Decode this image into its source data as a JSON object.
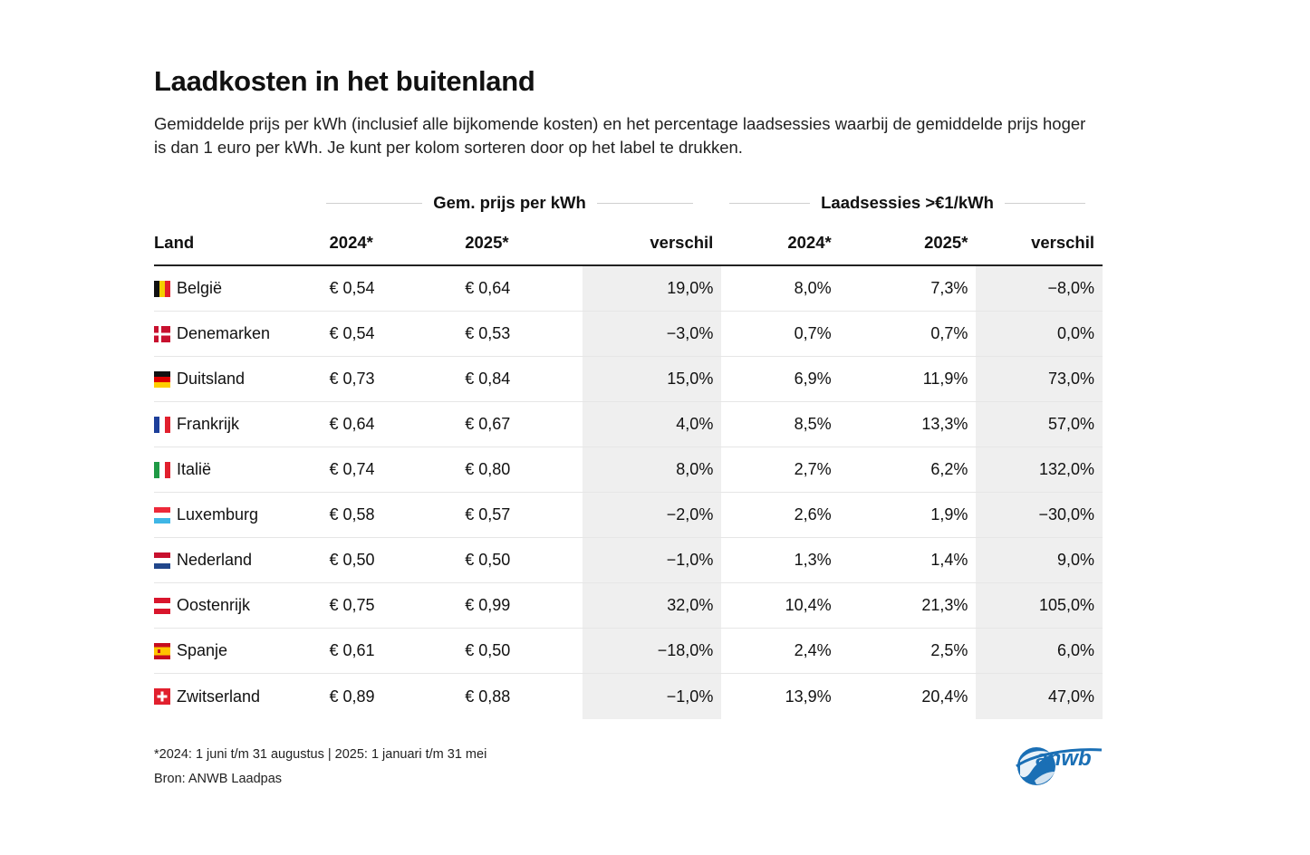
{
  "chart_data": {
    "type": "table",
    "title": "Laadkosten in het buitenland",
    "subtitle": "Gemiddelde prijs per kWh (inclusief alle bijkomende kosten) en het percentage laadsessies waarbij de gemiddelde prijs hoger is dan 1 euro per kWh. Je kunt per kolom sorteren door op het label te drukken.",
    "group_headers": [
      "Gem. prijs per kWh",
      "Laadsessies >€1/kWh"
    ],
    "columns": [
      "Land",
      "2024*",
      "2025*",
      "verschil",
      "2024*",
      "2025*",
      "verschil"
    ],
    "rows": [
      {
        "land": "België",
        "flag": "be",
        "prijs_2024": "€ 0,54",
        "prijs_2025": "€ 0,64",
        "prijs_verschil": "19,0%",
        "sessies_2024": "8,0%",
        "sessies_2025": "7,3%",
        "sessies_verschil": "−8,0%"
      },
      {
        "land": "Denemarken",
        "flag": "dk",
        "prijs_2024": "€ 0,54",
        "prijs_2025": "€ 0,53",
        "prijs_verschil": "−3,0%",
        "sessies_2024": "0,7%",
        "sessies_2025": "0,7%",
        "sessies_verschil": "0,0%"
      },
      {
        "land": "Duitsland",
        "flag": "de",
        "prijs_2024": "€ 0,73",
        "prijs_2025": "€ 0,84",
        "prijs_verschil": "15,0%",
        "sessies_2024": "6,9%",
        "sessies_2025": "11,9%",
        "sessies_verschil": "73,0%"
      },
      {
        "land": "Frankrijk",
        "flag": "fr",
        "prijs_2024": "€ 0,64",
        "prijs_2025": "€ 0,67",
        "prijs_verschil": "4,0%",
        "sessies_2024": "8,5%",
        "sessies_2025": "13,3%",
        "sessies_verschil": "57,0%"
      },
      {
        "land": "Italië",
        "flag": "it",
        "prijs_2024": "€ 0,74",
        "prijs_2025": "€ 0,80",
        "prijs_verschil": "8,0%",
        "sessies_2024": "2,7%",
        "sessies_2025": "6,2%",
        "sessies_verschil": "132,0%"
      },
      {
        "land": "Luxemburg",
        "flag": "lu",
        "prijs_2024": "€ 0,58",
        "prijs_2025": "€ 0,57",
        "prijs_verschil": "−2,0%",
        "sessies_2024": "2,6%",
        "sessies_2025": "1,9%",
        "sessies_verschil": "−30,0%"
      },
      {
        "land": "Nederland",
        "flag": "nl",
        "prijs_2024": "€ 0,50",
        "prijs_2025": "€ 0,50",
        "prijs_verschil": "−1,0%",
        "sessies_2024": "1,3%",
        "sessies_2025": "1,4%",
        "sessies_verschil": "9,0%"
      },
      {
        "land": "Oostenrijk",
        "flag": "at",
        "prijs_2024": "€ 0,75",
        "prijs_2025": "€ 0,99",
        "prijs_verschil": "32,0%",
        "sessies_2024": "10,4%",
        "sessies_2025": "21,3%",
        "sessies_verschil": "105,0%"
      },
      {
        "land": "Spanje",
        "flag": "es",
        "prijs_2024": "€ 0,61",
        "prijs_2025": "€ 0,50",
        "prijs_verschil": "−18,0%",
        "sessies_2024": "2,4%",
        "sessies_2025": "2,5%",
        "sessies_verschil": "6,0%"
      },
      {
        "land": "Zwitserland",
        "flag": "ch",
        "prijs_2024": "€ 0,89",
        "prijs_2025": "€ 0,88",
        "prijs_verschil": "−1,0%",
        "sessies_2024": "13,9%",
        "sessies_2025": "20,4%",
        "sessies_verschil": "47,0%"
      }
    ],
    "footnote": "*2024: 1 juni t/m 31 augustus | 2025: 1 januari t/m 31 mei",
    "source": "Bron: ANWB Laadpas",
    "logo_text": "anwb",
    "colors": {
      "shaded_column": "#efefef",
      "logo_blue": "#1a6fb5"
    }
  }
}
